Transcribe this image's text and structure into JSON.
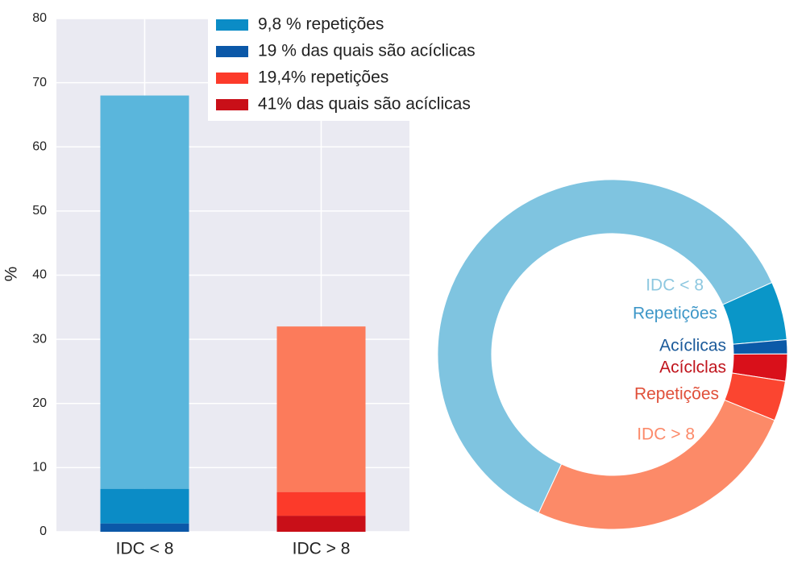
{
  "chart_data": [
    {
      "type": "bar",
      "stacked": true,
      "y_label": "%",
      "categories": [
        "IDC < 8",
        "IDC > 8"
      ],
      "series": [
        {
          "color": "#5ab6dc",
          "values": [
            61.3,
            null
          ]
        },
        {
          "name": "9,8 % repetições",
          "color": "#0b8cc6",
          "values": [
            5.4,
            null
          ]
        },
        {
          "name": "19 % das quais são acíclicas",
          "color": "#0b58a8",
          "values": [
            1.3,
            null
          ]
        },
        {
          "color": "#fc7b5b",
          "values": [
            null,
            25.8
          ]
        },
        {
          "name": "19,4% repetições",
          "color": "#fc3a2a",
          "values": [
            null,
            3.7
          ]
        },
        {
          "name": "41% das quais são acíclicas",
          "color": "#c90f18",
          "values": [
            null,
            2.5
          ]
        }
      ],
      "ylim": [
        0,
        80
      ],
      "yticks": [
        0,
        10,
        20,
        30,
        40,
        50,
        60,
        70,
        80
      ],
      "grid": true,
      "legend": "upper right"
    },
    {
      "type": "donut",
      "startangle": 245,
      "categories": [
        "IDC < 8",
        "Repetições",
        "Acíclicas",
        "Acíclclas",
        "Repetições",
        "IDC > 8"
      ],
      "values": [
        61.3,
        5.4,
        1.3,
        2.5,
        3.7,
        25.8
      ],
      "colors": [
        "#7fc4e0",
        "#0a96c8",
        "#0b5aa8",
        "#d9101a",
        "#fb4530",
        "#fc8a68"
      ],
      "label_colors": [
        "#8ec8e0",
        "#3e97c8",
        "#1b5a9a",
        "#c0141c",
        "#e0503a",
        "#fc8a6a"
      ]
    }
  ]
}
